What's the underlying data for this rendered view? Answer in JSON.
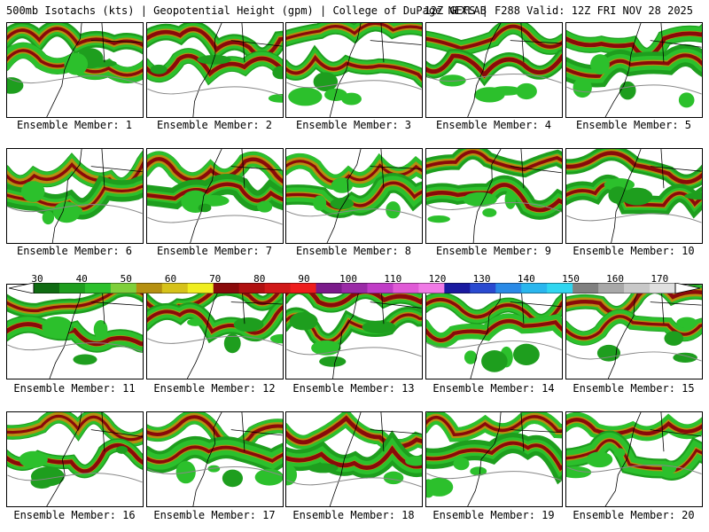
{
  "header": {
    "left": "500mb Isotachs (kts) | Geopotential Height (gpm) | College of DuPage NEXLAB",
    "right": "12Z GEFS | F288 Valid: 12Z FRI NOV 28 2025"
  },
  "members": [
    "Ensemble Member: 1",
    "Ensemble Member: 2",
    "Ensemble Member: 3",
    "Ensemble Member: 4",
    "Ensemble Member: 5",
    "Ensemble Member: 6",
    "Ensemble Member: 7",
    "Ensemble Member: 8",
    "Ensemble Member: 9",
    "Ensemble Member: 10",
    "Ensemble Member: 11",
    "Ensemble Member: 12",
    "Ensemble Member: 13",
    "Ensemble Member: 14",
    "Ensemble Member: 15",
    "Ensemble Member: 16",
    "Ensemble Member: 17",
    "Ensemble Member: 18",
    "Ensemble Member: 19",
    "Ensemble Member: 20"
  ],
  "colorbar": {
    "units": "kts",
    "ticks": [
      "30",
      "40",
      "50",
      "60",
      "70",
      "80",
      "90",
      "100",
      "110",
      "120",
      "130",
      "140",
      "150",
      "160",
      "170"
    ],
    "colors": [
      "#0f6b12",
      "#1e9e1e",
      "#2cc02c",
      "#7fcf3a",
      "#b59010",
      "#d6c21a",
      "#f0ee20",
      "#8a0a0a",
      "#b01010",
      "#d01818",
      "#ee1c1c",
      "#7a1a8a",
      "#9a2aa6",
      "#c03cc6",
      "#e05ad6",
      "#f07ae6",
      "#1a1aa0",
      "#2a4ad0",
      "#2a8ae6",
      "#2ab6ee",
      "#30d6f0",
      "#808080",
      "#a8a8a8",
      "#c8c8c8",
      "#e0e0e0"
    ]
  }
}
